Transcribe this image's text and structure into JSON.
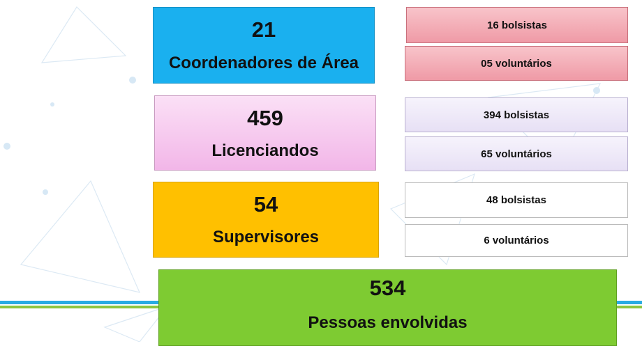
{
  "groups": [
    {
      "count": 21,
      "label": "Coordenadores de Área",
      "details": [
        "16 bolsistas",
        "05 voluntários"
      ]
    },
    {
      "count": 459,
      "label": "Licenciandos",
      "details": [
        "394 bolsistas",
        "65 voluntários"
      ]
    },
    {
      "count": 54,
      "label": "Supervisores",
      "details": [
        "48 bolsistas",
        "6 voluntários"
      ]
    }
  ],
  "total": {
    "count": 534,
    "label": "Pessoas envolvidas"
  }
}
